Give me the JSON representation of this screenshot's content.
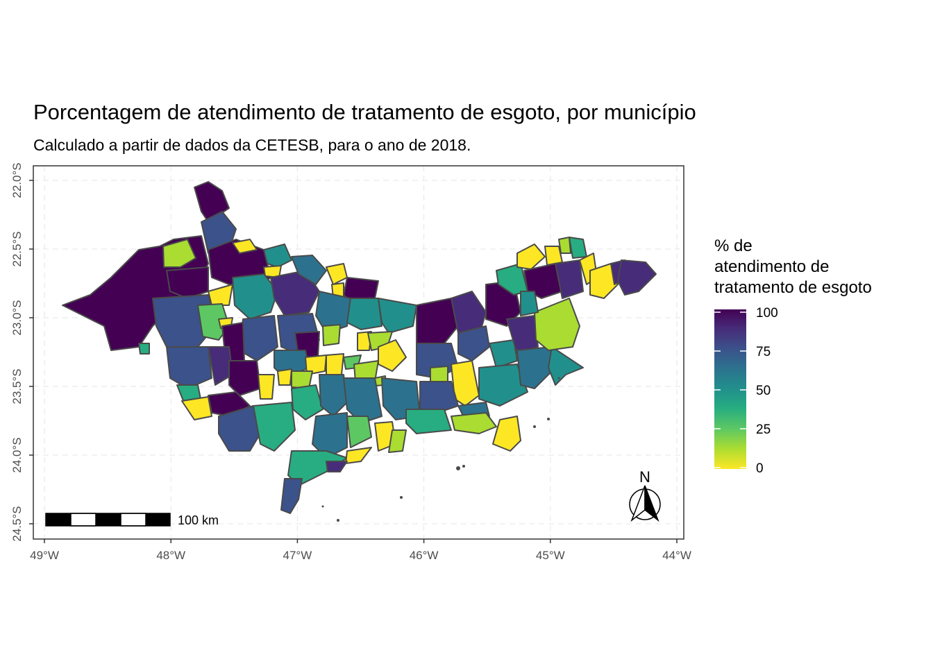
{
  "title": "Porcentagem de atendimento de tratamento de esgoto, por município",
  "subtitle": "Calculado a partir de dados da CETESB, para o ano de 2018.",
  "legend": {
    "title_lines": [
      "% de",
      "atendimento de",
      "tratamento de esgoto"
    ],
    "breaks": [
      100,
      75,
      50,
      25,
      0
    ],
    "palette": [
      "#440154",
      "#3b528b",
      "#21908c",
      "#5dc863",
      "#fde725"
    ]
  },
  "axes": {
    "x_ticks": [
      "49°W",
      "48°W",
      "47°W",
      "46°W",
      "45°W",
      "44°W"
    ],
    "y_ticks": [
      "22.0°S",
      "22.5°S",
      "23.0°S",
      "23.5°S",
      "24.0°S",
      "24.5°S"
    ]
  },
  "scale_bar": {
    "label": "100 km"
  },
  "north_arrow": {
    "label": "N",
    "icon": "north-arrow-icon"
  },
  "chart_data": {
    "type": "choropleth-map",
    "title": "Porcentagem de atendimento de tratamento de esgoto, por município",
    "subtitle": "Calculado a partir de dados da CETESB, para o ano de 2018.",
    "legend_title": "% de atendimento de tratamento de esgoto",
    "fill_range": [
      0,
      100
    ],
    "x_range_deg": [
      -49,
      -44
    ],
    "y_range_deg": [
      -24.5,
      -22.0
    ],
    "grid": true,
    "legend_position": "right",
    "colormap": "viridis (reversed)"
  }
}
